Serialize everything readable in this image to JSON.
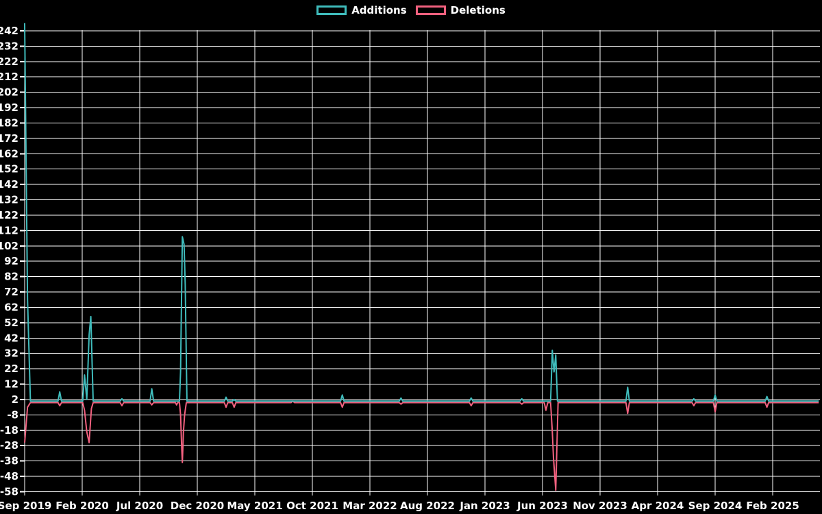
{
  "legend": {
    "additions": "Additions",
    "deletions": "Deletions"
  },
  "chart_data": {
    "type": "line",
    "title": "",
    "background_color": "#000000",
    "grid": true,
    "grid_color": "#ffffff",
    "text_color": "#ffffff",
    "legend_position": "top-center",
    "legend_entries": [
      "Additions",
      "Deletions"
    ],
    "x_unit": "months since Sep 2019 (weekly data points)",
    "x_axis": {
      "ticks": [
        {
          "label": "Sep 2019",
          "month": 0
        },
        {
          "label": "Feb 2020",
          "month": 5
        },
        {
          "label": "Jul 2020",
          "month": 10
        },
        {
          "label": "Dec 2020",
          "month": 15
        },
        {
          "label": "May 2021",
          "month": 20
        },
        {
          "label": "Oct 2021",
          "month": 25
        },
        {
          "label": "Mar 2022",
          "month": 30
        },
        {
          "label": "Aug 2022",
          "month": 35
        },
        {
          "label": "Jan 2023",
          "month": 40
        },
        {
          "label": "Jun 2023",
          "month": 45
        },
        {
          "label": "Nov 2023",
          "month": 50
        },
        {
          "label": "Apr 2024",
          "month": 55
        },
        {
          "label": "Sep 2024",
          "month": 60
        },
        {
          "label": "Feb 2025",
          "month": 65
        }
      ]
    },
    "y_axis": {
      "min": -58,
      "max": 242,
      "step": 10,
      "ticks": [
        242,
        232,
        222,
        212,
        202,
        192,
        182,
        172,
        162,
        152,
        142,
        132,
        122,
        112,
        102,
        92,
        82,
        72,
        62,
        52,
        42,
        32,
        22,
        12,
        2,
        -8,
        -18,
        -28,
        -38,
        -48,
        -58
      ]
    },
    "series": [
      {
        "name": "Additions",
        "color": "#3fbcbc",
        "baseline": 1,
        "points": [
          [
            0,
            247
          ],
          [
            0.25,
            67
          ],
          [
            0.5,
            1
          ],
          [
            2.9,
            1
          ],
          [
            3.05,
            7
          ],
          [
            3.2,
            1
          ],
          [
            5.05,
            1
          ],
          [
            5.2,
            18
          ],
          [
            5.4,
            2
          ],
          [
            5.6,
            44
          ],
          [
            5.75,
            56
          ],
          [
            5.95,
            1
          ],
          [
            8.3,
            1
          ],
          [
            8.45,
            2.5
          ],
          [
            8.6,
            1
          ],
          [
            10.9,
            1
          ],
          [
            11.05,
            9
          ],
          [
            11.2,
            1
          ],
          [
            13.45,
            1
          ],
          [
            13.55,
            20
          ],
          [
            13.7,
            108
          ],
          [
            13.85,
            103
          ],
          [
            13.95,
            77
          ],
          [
            14.1,
            1
          ],
          [
            17.35,
            1
          ],
          [
            17.5,
            3.5
          ],
          [
            17.65,
            1
          ],
          [
            18.05,
            1
          ],
          [
            18.2,
            2
          ],
          [
            18.35,
            1
          ],
          [
            27.45,
            1
          ],
          [
            27.6,
            5
          ],
          [
            27.75,
            1
          ],
          [
            32.55,
            1
          ],
          [
            32.7,
            3
          ],
          [
            32.85,
            1
          ],
          [
            38.65,
            1
          ],
          [
            38.8,
            3
          ],
          [
            38.95,
            1
          ],
          [
            43.05,
            1
          ],
          [
            43.2,
            2.5
          ],
          [
            43.35,
            1
          ],
          [
            45.7,
            1
          ],
          [
            45.85,
            34
          ],
          [
            46.0,
            20
          ],
          [
            46.15,
            31
          ],
          [
            46.3,
            1
          ],
          [
            52.25,
            1
          ],
          [
            52.4,
            10
          ],
          [
            52.55,
            1
          ],
          [
            58.0,
            1
          ],
          [
            58.15,
            2.5
          ],
          [
            58.3,
            1
          ],
          [
            59.85,
            1
          ],
          [
            60,
            5
          ],
          [
            60.15,
            1
          ],
          [
            64.35,
            1
          ],
          [
            64.5,
            4
          ],
          [
            64.65,
            1
          ],
          [
            69,
            1
          ]
        ]
      },
      {
        "name": "Deletions",
        "color": "#f2617f",
        "baseline": 0,
        "points": [
          [
            0,
            -26
          ],
          [
            0.25,
            -3
          ],
          [
            0.5,
            0
          ],
          [
            2.9,
            0
          ],
          [
            3.05,
            -2
          ],
          [
            3.2,
            0
          ],
          [
            5.05,
            0
          ],
          [
            5.2,
            -5
          ],
          [
            5.4,
            -19
          ],
          [
            5.6,
            -26
          ],
          [
            5.8,
            -4
          ],
          [
            5.95,
            0
          ],
          [
            8.3,
            0
          ],
          [
            8.45,
            -2
          ],
          [
            8.6,
            0
          ],
          [
            10.9,
            0
          ],
          [
            11.05,
            -1.5
          ],
          [
            11.2,
            0
          ],
          [
            13.1,
            0
          ],
          [
            13.2,
            -1.5
          ],
          [
            13.3,
            0
          ],
          [
            13.45,
            0
          ],
          [
            13.55,
            -8
          ],
          [
            13.65,
            -30
          ],
          [
            13.7,
            -39
          ],
          [
            13.8,
            -19
          ],
          [
            13.9,
            -8
          ],
          [
            14.05,
            0
          ],
          [
            17.35,
            0
          ],
          [
            17.5,
            -3
          ],
          [
            17.65,
            0
          ],
          [
            18.05,
            0
          ],
          [
            18.2,
            -3
          ],
          [
            18.35,
            0
          ],
          [
            23.15,
            0
          ],
          [
            23.3,
            1
          ],
          [
            23.45,
            0
          ],
          [
            27.45,
            0
          ],
          [
            27.6,
            -3
          ],
          [
            27.75,
            0
          ],
          [
            32.55,
            0
          ],
          [
            32.7,
            -1
          ],
          [
            32.85,
            0
          ],
          [
            38.65,
            0
          ],
          [
            38.8,
            -2
          ],
          [
            38.95,
            0
          ],
          [
            43.05,
            0
          ],
          [
            43.2,
            -1
          ],
          [
            43.35,
            0
          ],
          [
            45.15,
            0
          ],
          [
            45.3,
            -5
          ],
          [
            45.45,
            0
          ],
          [
            45.7,
            0
          ],
          [
            45.85,
            -19
          ],
          [
            45.95,
            -36
          ],
          [
            46.15,
            -57
          ],
          [
            46.35,
            0
          ],
          [
            52.25,
            0
          ],
          [
            52.4,
            -7
          ],
          [
            52.55,
            0
          ],
          [
            58.0,
            0
          ],
          [
            58.15,
            -2
          ],
          [
            58.3,
            0
          ],
          [
            59.85,
            0
          ],
          [
            60,
            -6
          ],
          [
            60.15,
            0
          ],
          [
            64.35,
            0
          ],
          [
            64.5,
            -3
          ],
          [
            64.65,
            0
          ],
          [
            69,
            0
          ]
        ]
      }
    ]
  }
}
